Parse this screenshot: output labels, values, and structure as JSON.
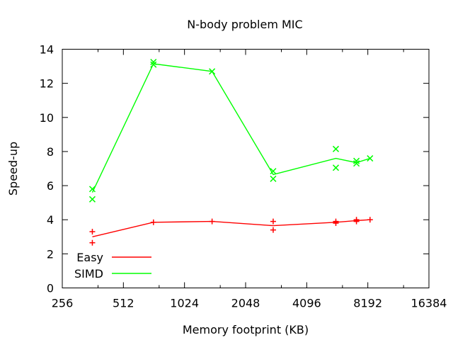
{
  "chart_data": {
    "type": "line",
    "title": "N-body problem MIC",
    "xlabel": "Memory footprint (KB)",
    "ylabel": "Speed-up",
    "x_scale": "log2",
    "xlim": [
      256,
      16384
    ],
    "ylim": [
      0,
      14
    ],
    "x_ticks": [
      256,
      512,
      1024,
      2048,
      4096,
      8192,
      16384
    ],
    "y_ticks": [
      0,
      2,
      4,
      6,
      8,
      10,
      12,
      14
    ],
    "legend_position": "bottom-left",
    "grid": false,
    "series": [
      {
        "name": "Easy",
        "color": "#ff0000",
        "marker": "plus",
        "line": [
          {
            "x": 360,
            "y": 3.0
          },
          {
            "x": 720,
            "y": 3.85
          },
          {
            "x": 1400,
            "y": 3.9
          },
          {
            "x": 2800,
            "y": 3.65
          },
          {
            "x": 5700,
            "y": 3.85
          },
          {
            "x": 7200,
            "y": 3.95
          },
          {
            "x": 8400,
            "y": 4.0
          }
        ],
        "points": [
          {
            "x": 360,
            "y": 3.3
          },
          {
            "x": 360,
            "y": 2.65
          },
          {
            "x": 720,
            "y": 3.85
          },
          {
            "x": 1400,
            "y": 3.9
          },
          {
            "x": 2800,
            "y": 3.9
          },
          {
            "x": 2800,
            "y": 3.4
          },
          {
            "x": 5700,
            "y": 3.9
          },
          {
            "x": 5700,
            "y": 3.8
          },
          {
            "x": 7200,
            "y": 4.0
          },
          {
            "x": 7200,
            "y": 3.9
          },
          {
            "x": 8400,
            "y": 4.0
          }
        ]
      },
      {
        "name": "SIMD",
        "color": "#00ff00",
        "marker": "cross",
        "line": [
          {
            "x": 360,
            "y": 5.6
          },
          {
            "x": 720,
            "y": 13.15
          },
          {
            "x": 1400,
            "y": 12.7
          },
          {
            "x": 2800,
            "y": 6.65
          },
          {
            "x": 5700,
            "y": 7.6
          },
          {
            "x": 7200,
            "y": 7.35
          },
          {
            "x": 8400,
            "y": 7.6
          }
        ],
        "points": [
          {
            "x": 360,
            "y": 5.8
          },
          {
            "x": 360,
            "y": 5.2
          },
          {
            "x": 720,
            "y": 13.25
          },
          {
            "x": 720,
            "y": 13.1
          },
          {
            "x": 1400,
            "y": 12.7
          },
          {
            "x": 2800,
            "y": 6.85
          },
          {
            "x": 2800,
            "y": 6.4
          },
          {
            "x": 5700,
            "y": 8.15
          },
          {
            "x": 5700,
            "y": 7.05
          },
          {
            "x": 7200,
            "y": 7.45
          },
          {
            "x": 7200,
            "y": 7.3
          },
          {
            "x": 8400,
            "y": 7.6
          }
        ]
      }
    ]
  }
}
